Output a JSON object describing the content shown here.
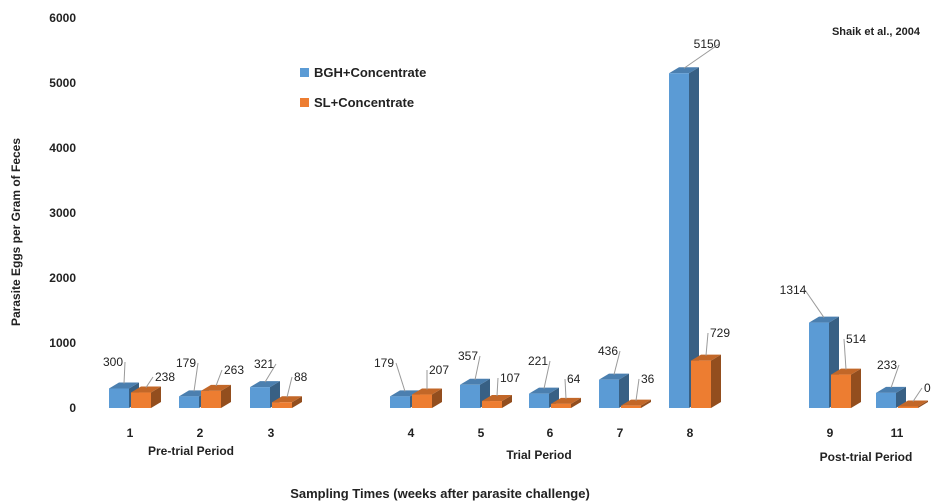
{
  "chart_data": {
    "type": "bar",
    "style": "3d-clustered",
    "annotation": "Shaik et al., 2004",
    "ylabel": "Parasite Eggs per Gram of Feces",
    "xlabel": "Sampling Times (weeks after parasite challenge)",
    "ylim": [
      0,
      6000
    ],
    "yticks": [
      "0",
      "1000",
      "2000",
      "3000",
      "4000",
      "5000",
      "6000"
    ],
    "grid": false,
    "legend_position": "top-left (inside plot)",
    "categories": [
      "1",
      "2",
      "3",
      "4",
      "5",
      "6",
      "7",
      "8",
      "9",
      "11"
    ],
    "groups": [
      {
        "label": "Pre-trial Period",
        "categories": [
          "1",
          "2",
          "3"
        ]
      },
      {
        "label": "Trial Period",
        "categories": [
          "4",
          "5",
          "6",
          "7",
          "8"
        ]
      },
      {
        "label": "Post-trial Period",
        "categories": [
          "9",
          "11"
        ]
      }
    ],
    "series": [
      {
        "name": "BGH+Concentrate",
        "color": "#5b9bd5",
        "values": [
          300,
          179,
          321,
          179,
          357,
          221,
          436,
          5150,
          1314,
          233
        ]
      },
      {
        "name": "SL+Concentrate",
        "color": "#ed7d31",
        "values": [
          238,
          263,
          88,
          207,
          107,
          64,
          36,
          729,
          514,
          0
        ]
      }
    ]
  }
}
